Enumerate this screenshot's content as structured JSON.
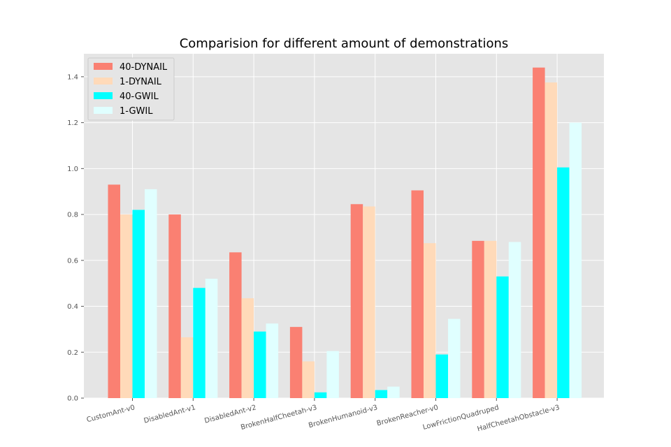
{
  "chart_data": {
    "type": "bar",
    "title": "Comparision for different amount of demonstrations",
    "xlabel": "",
    "ylabel": "",
    "ylim": [
      0,
      1.5
    ],
    "yticks": [
      "0.0",
      "0.2",
      "0.4",
      "0.6",
      "0.8",
      "1.0",
      "1.2",
      "1.4"
    ],
    "grid": true,
    "legend_position": "top-left",
    "categories": [
      "CustomAnt-v0",
      "DisabledAnt-v1",
      "DisabledAnt-v2",
      "BrokenHalfCheetah-v3",
      "BrokenHumanoid-v3",
      "BrokenReacher-v0",
      "LowFrictionQuadruped",
      "HalfCheetahObstacle-v3"
    ],
    "series": [
      {
        "name": "40-DYNAIL",
        "color": "#fa8072",
        "values": [
          0.93,
          0.8,
          0.635,
          0.31,
          0.845,
          0.905,
          0.685,
          1.44
        ]
      },
      {
        "name": "1-DYNAIL",
        "color": "#ffdab9",
        "values": [
          0.8,
          0.265,
          0.435,
          0.16,
          0.835,
          0.675,
          0.685,
          1.375
        ]
      },
      {
        "name": "40-GWIL",
        "color": "#00ffff",
        "values": [
          0.82,
          0.48,
          0.29,
          0.025,
          0.035,
          0.19,
          0.53,
          1.005
        ]
      },
      {
        "name": "1-GWIL",
        "color": "#e0ffff",
        "values": [
          0.91,
          0.52,
          0.325,
          0.205,
          0.05,
          0.345,
          0.68,
          1.2
        ]
      }
    ]
  }
}
